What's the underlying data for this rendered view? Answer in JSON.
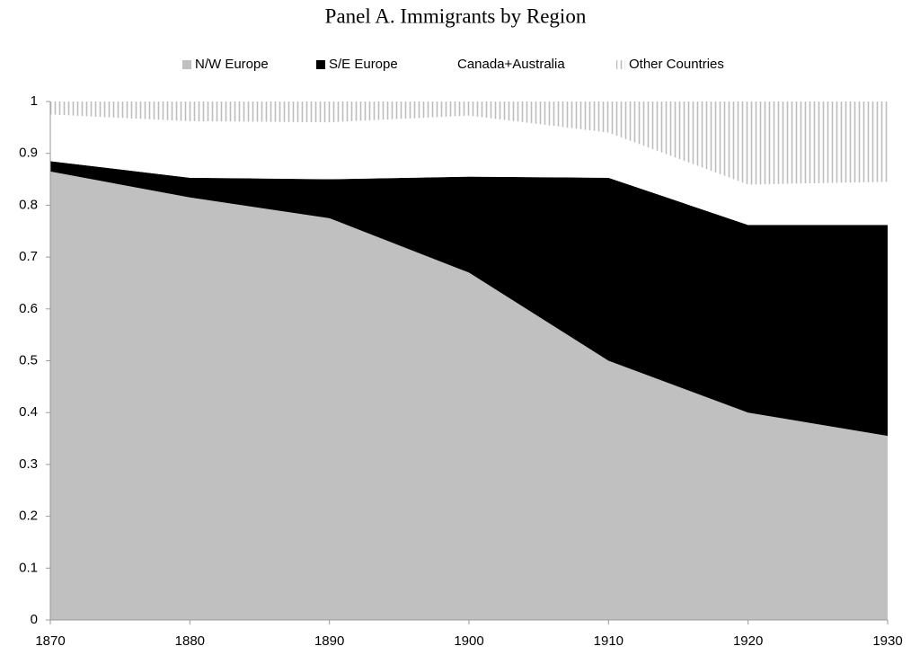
{
  "chart_data": {
    "type": "stacked_area",
    "title": "Panel A. Immigrants by Region",
    "x": [
      1870,
      1880,
      1890,
      1900,
      1910,
      1920,
      1930
    ],
    "series": [
      {
        "name": "N/W Europe",
        "color": "#c0c0c0",
        "values": [
          0.865,
          0.815,
          0.775,
          0.67,
          0.5,
          0.4,
          0.355
        ]
      },
      {
        "name": "S/E Europe",
        "color": "#000000",
        "values": [
          0.02,
          0.038,
          0.075,
          0.185,
          0.353,
          0.362,
          0.407
        ]
      },
      {
        "name": "Canada+Australia",
        "color": "#ffffff",
        "values": [
          0.09,
          0.109,
          0.11,
          0.118,
          0.087,
          0.078,
          0.083
        ]
      },
      {
        "name": "Other Countries",
        "color": "#bdbdbd",
        "pattern": "vertical-hatch",
        "values": [
          0.025,
          0.038,
          0.04,
          0.027,
          0.06,
          0.16,
          0.155
        ]
      }
    ],
    "xlim": [
      1870,
      1930
    ],
    "xticks": [
      1870,
      1880,
      1890,
      1900,
      1910,
      1920,
      1930
    ],
    "ylim": [
      0,
      1
    ],
    "yticks": [
      0,
      0.1,
      0.2,
      0.3,
      0.4,
      0.5,
      0.6,
      0.7,
      0.8,
      0.9,
      1
    ],
    "legend": "top",
    "grid": false
  }
}
